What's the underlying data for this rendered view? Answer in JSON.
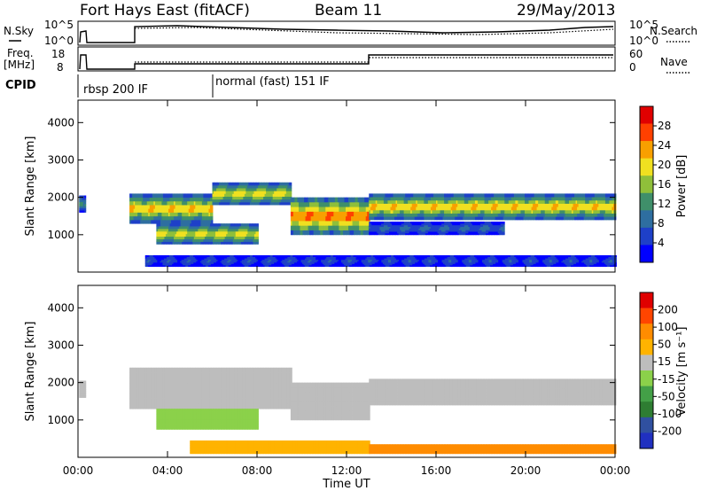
{
  "header": {
    "station": "Fort Hays East (fitACF)",
    "beam": "Beam 11",
    "date": "29/May/2013"
  },
  "panels": {
    "nsky": {
      "left_label": "N.Sky",
      "right_label": "N.Search",
      "left_ticks": [
        "10^5",
        "10^0"
      ],
      "right_ticks": [
        "10^5",
        "10^0"
      ]
    },
    "freq": {
      "left_label_1": "Freq.",
      "left_label_2": "[MHz]",
      "right_label": "Nave",
      "left_ticks": [
        "18",
        "8"
      ],
      "right_ticks": [
        "60",
        "0"
      ]
    },
    "cpid": {
      "label": "CPID",
      "segments": [
        "rbsp 200 IF",
        "normal (fast) 151 IF"
      ]
    }
  },
  "chart_data": [
    {
      "type": "heatmap",
      "name": "power",
      "ylabel": "Slant Range [km]",
      "xlabel": "",
      "ylim": [
        0,
        4600
      ],
      "yticks": [
        "1000",
        "2000",
        "3000",
        "4000"
      ],
      "xticks": [
        "00:00",
        "04:00",
        "08:00",
        "12:00",
        "16:00",
        "20:00",
        "00:00"
      ],
      "colorbar": {
        "label": "Power [dB]",
        "ticks": [
          "28",
          "24",
          "20",
          "16",
          "12",
          "8",
          "4"
        ],
        "colors": [
          "#0000ff",
          "#1e40c8",
          "#2e6ea0",
          "#3f8f6a",
          "#8fbf3a",
          "#f0e020",
          "#f8a000",
          "#ff4000",
          "#e00000"
        ]
      },
      "bands": [
        {
          "t_start": 0.05,
          "t_end": 0.3,
          "range_lo": 1600,
          "range_hi": 2050,
          "power": 14
        },
        {
          "t_start": 2.3,
          "t_end": 6,
          "range_lo": 1300,
          "range_hi": 2100,
          "power": 22
        },
        {
          "t_start": 6,
          "t_end": 9.5,
          "range_lo": 1800,
          "range_hi": 2400,
          "power": 20
        },
        {
          "t_start": 9.5,
          "t_end": 13,
          "range_lo": 1000,
          "range_hi": 2000,
          "power": 26
        },
        {
          "t_start": 3.5,
          "t_end": 8,
          "range_lo": 750,
          "range_hi": 1300,
          "power": 20
        },
        {
          "t_start": 13,
          "t_end": 24,
          "range_lo": 1400,
          "range_hi": 2100,
          "power": 22
        },
        {
          "t_start": 13,
          "t_end": 19,
          "range_lo": 1000,
          "range_hi": 1350,
          "power": 8
        },
        {
          "t_start": 3,
          "t_end": 24,
          "range_lo": 150,
          "range_hi": 450,
          "power": 6
        }
      ]
    },
    {
      "type": "heatmap",
      "name": "velocity",
      "ylabel": "Slant Range [km]",
      "xlabel": "Time UT",
      "ylim": [
        0,
        4600
      ],
      "yticks": [
        "1000",
        "2000",
        "3000",
        "4000"
      ],
      "xticks": [
        "00:00",
        "04:00",
        "08:00",
        "12:00",
        "16:00",
        "20:00",
        "00:00"
      ],
      "colorbar": {
        "label": "Velocity [m s⁻¹]",
        "ticks": [
          "200",
          "100",
          "50",
          "15",
          "-15",
          "-50",
          "-100",
          "-200"
        ],
        "colors": [
          "#2030c0",
          "#3050a0",
          "#2e7d32",
          "#43a047",
          "#8bd14a",
          "#bdbdbd",
          "#ffb300",
          "#ff8c00",
          "#ff4500",
          "#e00000"
        ]
      },
      "bands": [
        {
          "t_start": 0.05,
          "t_end": 0.3,
          "range_lo": 1600,
          "range_hi": 2050,
          "velocity": 0
        },
        {
          "t_start": 2.3,
          "t_end": 9.5,
          "range_lo": 1300,
          "range_hi": 2400,
          "velocity": 0
        },
        {
          "t_start": 9.5,
          "t_end": 13,
          "range_lo": 1000,
          "range_hi": 2000,
          "velocity": 0
        },
        {
          "t_start": 3.5,
          "t_end": 8,
          "range_lo": 750,
          "range_hi": 1300,
          "velocity": 40
        },
        {
          "t_start": 13,
          "t_end": 24,
          "range_lo": 1400,
          "range_hi": 2100,
          "velocity": 0
        },
        {
          "t_start": 5,
          "t_end": 13,
          "range_lo": 100,
          "range_hi": 450,
          "velocity": -40
        },
        {
          "t_start": 13,
          "t_end": 24,
          "range_lo": 100,
          "range_hi": 350,
          "velocity": -60
        }
      ]
    }
  ]
}
